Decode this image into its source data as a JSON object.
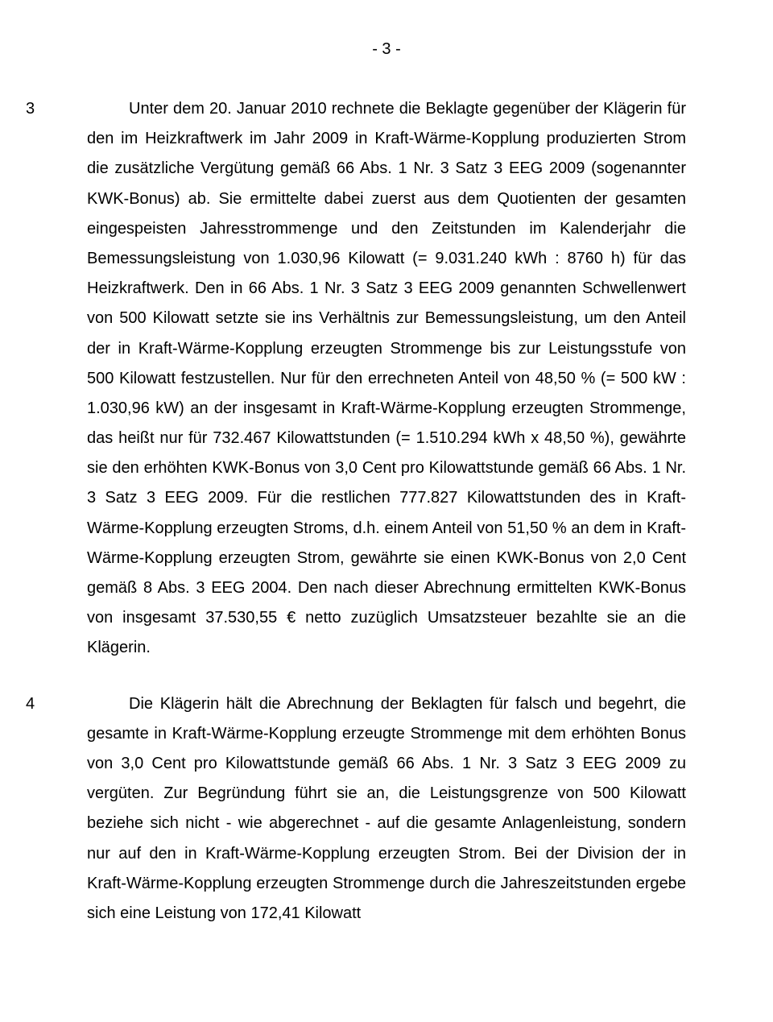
{
  "page": {
    "number_label": "- 3 -"
  },
  "paragraphs": [
    {
      "margin": "3",
      "text": "Unter dem 20. Januar 2010 rechnete die Beklagte gegenüber der Klägerin für den im Heizkraftwerk im Jahr 2009 in Kraft-Wärme-Kopplung produzierten Strom die zusätzliche Vergütung gemäß 66 Abs. 1 Nr. 3 Satz 3 EEG 2009 (sogenannter KWK-Bonus) ab. Sie ermittelte dabei zuerst aus dem Quotienten der gesamten eingespeisten Jahresstrommenge und den Zeitstunden im Kalenderjahr die Bemessungsleistung von 1.030,96 Kilowatt (= 9.031.240 kWh : 8760 h) für das Heizkraftwerk. Den in 66 Abs. 1 Nr. 3 Satz 3 EEG 2009 genannten Schwellenwert von 500 Kilowatt setzte sie ins Verhältnis zur Bemessungsleistung, um den Anteil der in Kraft-Wärme-Kopplung erzeugten Strommenge bis zur Leistungsstufe von 500 Kilowatt festzustellen. Nur für den errechneten Anteil von 48,50 % (= 500 kW : 1.030,96 kW) an der insgesamt in Kraft-Wärme-Kopplung erzeugten Strommenge, das heißt nur für 732.467 Kilowattstunden (= 1.510.294 kWh x 48,50 %), gewährte sie den erhöhten KWK-Bonus von 3,0 Cent pro Kilowattstunde gemäß 66 Abs. 1 Nr. 3 Satz 3 EEG 2009. Für die restlichen 777.827 Kilowattstunden des in Kraft-Wärme-Kopplung erzeugten Stroms, d.h. einem Anteil von 51,50 % an dem in Kraft-Wärme-Kopplung erzeugten Strom, gewährte sie einen KWK-Bonus von 2,0 Cent gemäß 8 Abs. 3 EEG 2004. Den nach dieser Abrechnung ermittelten KWK-Bonus von insgesamt 37.530,55 € netto zuzüglich Umsatzsteuer bezahlte sie an die Klägerin."
    },
    {
      "margin": "4",
      "text": "Die Klägerin hält die Abrechnung der Beklagten für falsch und begehrt, die gesamte in Kraft-Wärme-Kopplung erzeugte Strommenge mit dem erhöhten Bonus von 3,0 Cent pro Kilowattstunde gemäß 66 Abs. 1 Nr. 3 Satz 3 EEG 2009 zu vergüten. Zur Begründung führt sie an, die Leistungsgrenze von 500 Kilowatt beziehe sich nicht - wie abgerechnet - auf die gesamte Anlagenleistung, sondern nur auf den in Kraft-Wärme-Kopplung erzeugten Strom. Bei der Division der in Kraft-Wärme-Kopplung erzeugten Strommenge durch die Jahreszeitstunden ergebe sich eine Leistung von 172,41 Kilowatt"
    }
  ]
}
